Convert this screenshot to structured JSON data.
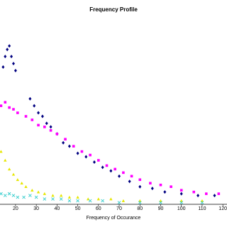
{
  "chart_data": {
    "type": "scatter",
    "title": "Frequency Profile",
    "x_label": "Frequency of Occurance",
    "xlim": [
      12.5,
      122
    ],
    "xticks": [
      20,
      30,
      40,
      50,
      60,
      70,
      80,
      90,
      100,
      110,
      120
    ],
    "ylim": [
      0,
      100
    ],
    "series": [
      {
        "color": "#000080",
        "marker": "diamond",
        "x": [
          14,
          15,
          16,
          17,
          18,
          19,
          20,
          27,
          29,
          31,
          33,
          35,
          37,
          40,
          43,
          46,
          50,
          54,
          58,
          62,
          66,
          70,
          75,
          80,
          86,
          92,
          100,
          108,
          116
        ],
        "values": [
          78,
          84,
          88,
          90,
          84,
          80,
          76,
          60,
          56,
          52,
          50,
          46,
          44,
          40,
          35,
          33,
          29,
          27,
          24,
          21,
          19,
          16,
          13,
          10,
          9,
          7,
          6,
          5,
          5
        ]
      },
      {
        "color": "#ff00ff",
        "marker": "square",
        "x": [
          13,
          15,
          17,
          19,
          21,
          25,
          28,
          31,
          34,
          37,
          40,
          44,
          48,
          52,
          56,
          60,
          64,
          68,
          72,
          76,
          80,
          85,
          90,
          95,
          100,
          106,
          112,
          118
        ],
        "values": [
          56,
          58,
          55,
          54,
          52,
          50,
          48,
          45,
          44,
          42,
          40,
          37,
          33,
          30,
          28,
          25,
          22,
          20,
          18,
          16,
          14,
          12,
          11,
          10,
          8,
          7,
          6,
          6
        ]
      },
      {
        "color": "#e6e600",
        "marker": "triangle",
        "x": [
          13,
          15,
          17,
          19,
          21,
          23,
          25,
          28,
          31,
          34,
          38,
          42,
          46,
          50,
          55,
          60,
          66,
          72,
          80,
          90,
          100,
          110
        ],
        "values": [
          30,
          25,
          20,
          17,
          14,
          12,
          10,
          8,
          7,
          6,
          5,
          5,
          4,
          4,
          3,
          3,
          3,
          2,
          2,
          2,
          2,
          2
        ]
      },
      {
        "color": "#33cccc",
        "marker": "cross",
        "x": [
          13,
          15,
          17,
          19,
          21,
          24,
          27,
          30,
          34,
          38,
          42,
          46,
          50,
          56,
          62,
          70,
          80,
          90,
          100,
          110
        ],
        "values": [
          6,
          5,
          6,
          5,
          4,
          4,
          5,
          4,
          3,
          3,
          3,
          2,
          2,
          2,
          2,
          1,
          1,
          1,
          1,
          1
        ]
      }
    ]
  }
}
